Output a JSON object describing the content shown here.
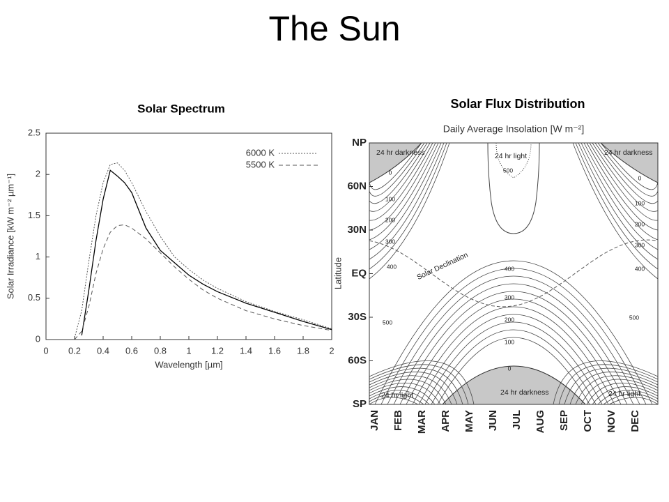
{
  "title": "The Sun",
  "chart_data": [
    {
      "type": "line",
      "title": "Solar Spectrum",
      "xlabel": "Wavelength [µm]",
      "ylabel": "Solar Irradiance [kW m⁻² µm⁻¹]",
      "x": [
        0.2,
        0.25,
        0.3,
        0.35,
        0.4,
        0.45,
        0.5,
        0.55,
        0.6,
        0.7,
        0.8,
        0.9,
        1.0,
        1.1,
        1.2,
        1.4,
        1.6,
        1.8,
        2.0
      ],
      "series": [
        {
          "color": "#000000",
          "style": "solid",
          "values": [
            null,
            0.05,
            0.6,
            1.2,
            1.7,
            2.05,
            1.98,
            1.9,
            1.78,
            1.35,
            1.08,
            0.93,
            0.78,
            0.67,
            0.58,
            0.44,
            0.33,
            0.22,
            0.12
          ]
        },
        {
          "name": "6000 K",
          "color": "#555555",
          "style": "dotted",
          "values": [
            0.02,
            0.35,
            0.95,
            1.5,
            1.9,
            2.12,
            2.14,
            2.05,
            1.9,
            1.55,
            1.25,
            1.0,
            0.85,
            0.72,
            0.62,
            0.46,
            0.34,
            0.24,
            0.13
          ]
        },
        {
          "name": "5500 K",
          "color": "#555555",
          "style": "dashed",
          "values": [
            0.0,
            0.1,
            0.4,
            0.8,
            1.1,
            1.3,
            1.38,
            1.39,
            1.35,
            1.22,
            1.05,
            0.88,
            0.73,
            0.6,
            0.5,
            0.35,
            0.25,
            0.17,
            0.11
          ]
        }
      ],
      "xlim": [
        0,
        2
      ],
      "xticks": [
        0,
        0.2,
        0.4,
        0.6,
        0.8,
        1,
        1.2,
        1.4,
        1.6,
        1.8,
        2
      ],
      "ylim": [
        0,
        2.5
      ],
      "yticks": [
        0,
        0.5,
        1,
        1.5,
        2,
        2.5
      ],
      "legend": "upper right"
    },
    {
      "type": "contour",
      "title": "Solar Flux Distribution",
      "subtitle": "Daily Average Insolation [W m⁻²]",
      "ylabel": "Latitude",
      "categories": [
        "JAN",
        "FEB",
        "MAR",
        "APR",
        "MAY",
        "JUN",
        "JUL",
        "AUG",
        "SEP",
        "OCT",
        "NOV",
        "DEC"
      ],
      "ylim": [
        -90,
        90
      ],
      "yticks": [
        {
          "value": 90,
          "label": "NP"
        },
        {
          "value": 60,
          "label": "60N"
        },
        {
          "value": 30,
          "label": "30N"
        },
        {
          "value": 0,
          "label": "EQ"
        },
        {
          "value": -30,
          "label": "30S"
        },
        {
          "value": -60,
          "label": "60S"
        },
        {
          "value": -90,
          "label": "SP"
        }
      ],
      "annotations": [
        "24 hr darkness",
        "24 hr light",
        "24 hr darkness",
        "Solar Declination",
        "24 hr light",
        "24 hr darkness",
        "24 hr light"
      ],
      "contour_labels": [
        0,
        100,
        200,
        300,
        400,
        0,
        100,
        200,
        300,
        400,
        500,
        400,
        300,
        200,
        100,
        0,
        500,
        500
      ]
    }
  ]
}
